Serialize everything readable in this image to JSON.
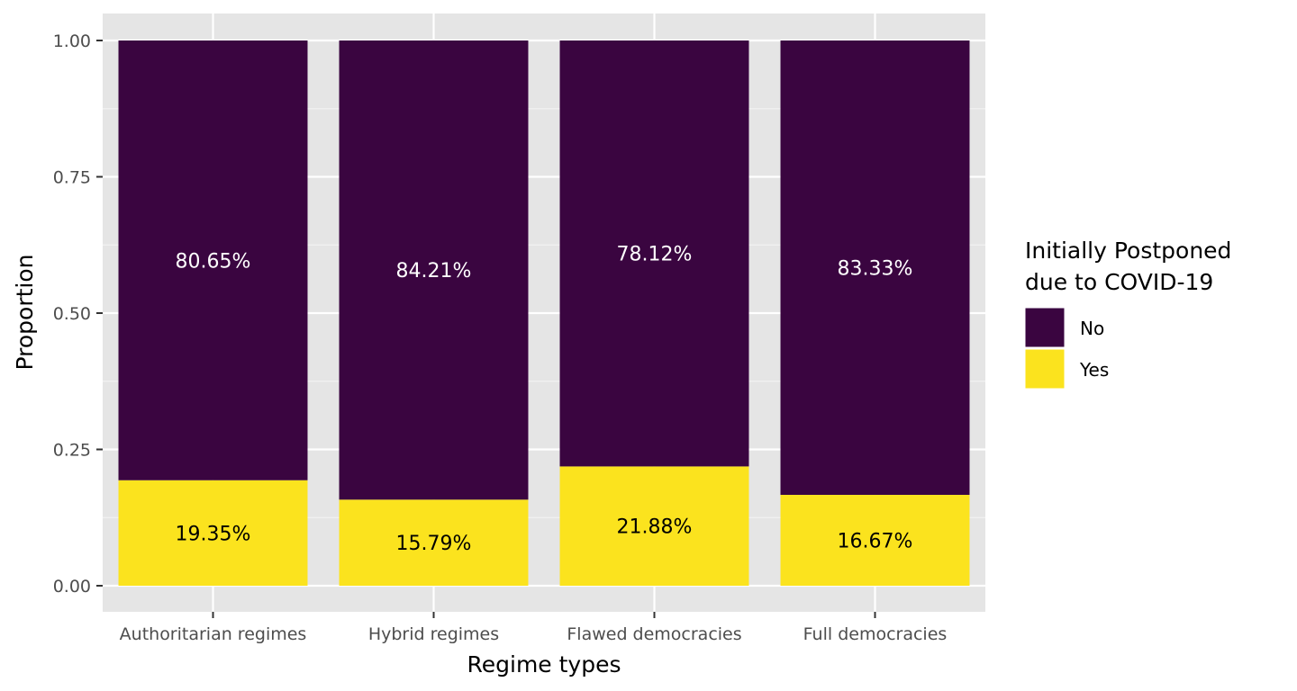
{
  "chart_data": {
    "type": "bar",
    "stacked": true,
    "categories": [
      "Authoritarian regimes",
      "Hybrid regimes",
      "Flawed democracies",
      "Full democracies"
    ],
    "series": [
      {
        "name": "No",
        "values": [
          0.8065,
          0.8421,
          0.7812,
          0.8333
        ],
        "labels": [
          "80.65%",
          "84.21%",
          "78.12%",
          "83.33%"
        ],
        "color": "#3a0540"
      },
      {
        "name": "Yes",
        "values": [
          0.1935,
          0.1579,
          0.2188,
          0.1667
        ],
        "labels": [
          "19.35%",
          "15.79%",
          "21.88%",
          "16.67%"
        ],
        "color": "#fbe31e"
      }
    ],
    "xlabel": "Regime types",
    "ylabel": "Proportion",
    "ylim": [
      0,
      1
    ],
    "yticks": [
      "0.00",
      "0.25",
      "0.50",
      "0.75",
      "1.00"
    ],
    "legend": {
      "title_lines": [
        "Initially Postponed",
        "due to COVID-19"
      ],
      "position": "right"
    },
    "grid": true,
    "panel_background": "#e5e5e5"
  }
}
